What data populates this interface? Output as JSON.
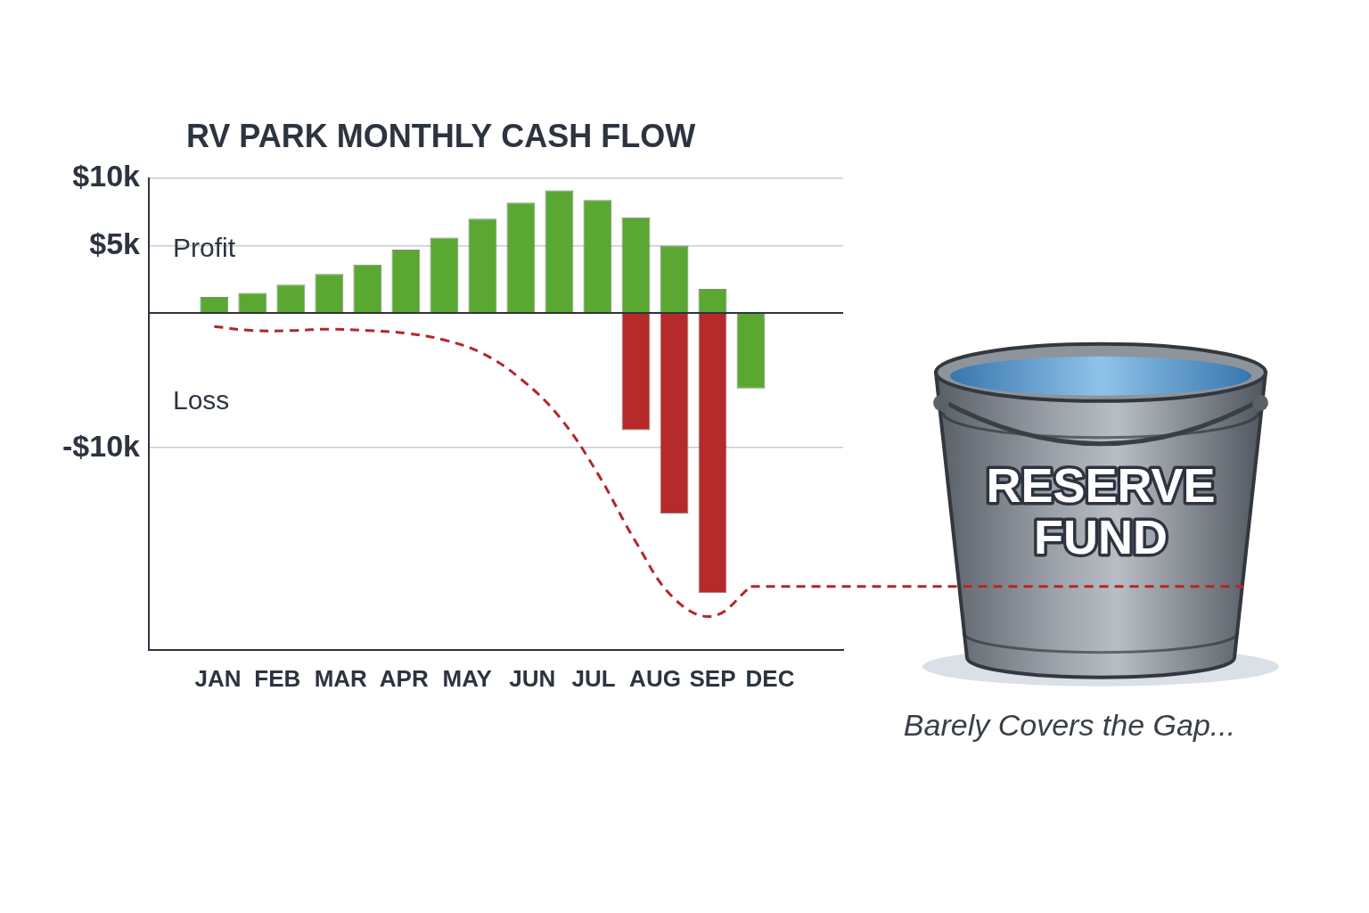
{
  "chart_data": {
    "type": "bar",
    "title": "RV PARK MONTHLY CASH FLOW",
    "annotations": [
      "Profit",
      "Loss"
    ],
    "reserve_label": "RESERVE FUND",
    "caption": "Barely Covers the Gap...",
    "x": [
      0,
      1,
      2,
      3,
      4,
      5,
      6,
      7,
      8,
      9,
      10,
      11,
      12,
      13,
      14
    ],
    "xlim": [
      -0.8,
      15.5
    ],
    "xticks": [
      {
        "value": 0.1,
        "label": "JAN"
      },
      {
        "value": 1.65,
        "label": "FEB"
      },
      {
        "value": 3.3,
        "label": "MAR"
      },
      {
        "value": 4.95,
        "label": "APR"
      },
      {
        "value": 6.6,
        "label": "MAY"
      },
      {
        "value": 8.3,
        "label": "JUN"
      },
      {
        "value": 9.9,
        "label": "JUL"
      },
      {
        "value": 11.5,
        "label": "AUG"
      },
      {
        "value": 13,
        "label": "SEP"
      },
      {
        "value": 14.5,
        "label": "DEC"
      }
    ],
    "series": [
      {
        "color": "#5aa832",
        "values": [
          1200,
          1500,
          2100,
          2900,
          3600,
          4700,
          5600,
          7000,
          8200,
          9100,
          8400,
          7100,
          5000,
          1800,
          -5600
        ]
      },
      {
        "color": "#b52a2a",
        "values": [
          null,
          null,
          null,
          null,
          null,
          null,
          null,
          null,
          null,
          null,
          null,
          -8700,
          -14900,
          -20800,
          null
        ]
      },
      {
        "type": "line",
        "line_style": "dashed",
        "color": "#b3262b",
        "values": [
          -1000,
          -1300,
          -1300,
          -1200,
          -1300,
          -1500,
          -2000,
          -3000,
          -4900,
          -7700,
          -11900,
          -17000,
          -21200,
          -22500,
          -20300
        ]
      }
    ],
    "ylim": [
      -25000,
      10000
    ],
    "yticks": [
      {
        "value": -10000,
        "label": "-$10k"
      },
      {
        "value": 5000,
        "label": "$5k"
      },
      {
        "value": 10000,
        "label": "$10k"
      }
    ],
    "stacked": true,
    "grid": true
  }
}
